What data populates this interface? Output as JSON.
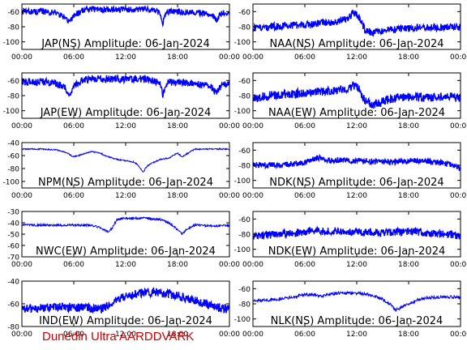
{
  "footer_text": "Dunedin Ultra AARDDVARK",
  "colors": {
    "trace": "#0000ff",
    "title": "#000000",
    "frame": "#000000",
    "footer": "#cc0000",
    "background": "#ffffff"
  },
  "chart_data": [
    {
      "type": "line",
      "title": "JAP(NS) Amplitude: 06-Jan-2024",
      "xlabel": "",
      "ylabel": "",
      "xticks": [
        "00:00",
        "06:00",
        "12:00",
        "18:00",
        "00:00"
      ],
      "xlim": [
        0,
        24
      ],
      "ylim": [
        -110,
        -50
      ],
      "yticks": [
        -60,
        -80,
        -100
      ],
      "grid": false,
      "series": [
        {
          "x": [
            0,
            1,
            2,
            3,
            4,
            5,
            5.5,
            6,
            7,
            8,
            9,
            10,
            11,
            12,
            13,
            14,
            15,
            16,
            16.3,
            16.6,
            17,
            18,
            19,
            20,
            21,
            22,
            22.5,
            23,
            24
          ],
          "y": [
            -60,
            -60,
            -60,
            -60,
            -62,
            -68,
            -74,
            -65,
            -58,
            -57,
            -57,
            -57,
            -57,
            -57,
            -57,
            -57,
            -58,
            -62,
            -75,
            -63,
            -60,
            -60,
            -61,
            -61,
            -62,
            -64,
            -72,
            -63,
            -60
          ],
          "spread": 4
        }
      ]
    },
    {
      "type": "line",
      "title": "NAA(NS) Amplitude: 06-Jan-2024",
      "xlabel": "",
      "ylabel": "",
      "xticks": [
        "00:00",
        "06:00",
        "12:00",
        "18:00",
        "00:00"
      ],
      "xlim": [
        0,
        24
      ],
      "ylim": [
        -110,
        -50
      ],
      "yticks": [
        -60,
        -80,
        -100
      ],
      "grid": false,
      "series": [
        {
          "x": [
            0,
            2,
            4,
            6,
            8,
            10,
            11,
            11.5,
            12,
            12.5,
            13,
            14,
            15,
            16,
            18,
            20,
            22,
            24
          ],
          "y": [
            -82,
            -80,
            -78,
            -77,
            -75,
            -72,
            -68,
            -62,
            -64,
            -72,
            -85,
            -88,
            -86,
            -84,
            -82,
            -81,
            -81,
            -80
          ],
          "spread": 5
        }
      ]
    },
    {
      "type": "line",
      "title": "JAP(EW) Amplitude: 06-Jan-2024",
      "xlabel": "",
      "ylabel": "",
      "xticks": [
        "00:00",
        "06:00",
        "12:00",
        "18:00",
        "00:00"
      ],
      "xlim": [
        0,
        24
      ],
      "ylim": [
        -110,
        -50
      ],
      "yticks": [
        -60,
        -80,
        -100
      ],
      "grid": false,
      "series": [
        {
          "x": [
            0,
            1,
            2,
            3,
            4,
            5,
            5.5,
            6,
            7,
            8,
            9,
            10,
            11,
            12,
            13,
            14,
            15,
            16,
            16.3,
            16.6,
            17,
            18,
            19,
            20,
            21,
            22,
            22.5,
            23,
            24
          ],
          "y": [
            -62,
            -62,
            -62,
            -62,
            -64,
            -70,
            -80,
            -68,
            -60,
            -58,
            -58,
            -58,
            -58,
            -58,
            -58,
            -58,
            -60,
            -64,
            -80,
            -66,
            -62,
            -62,
            -63,
            -64,
            -66,
            -70,
            -78,
            -68,
            -64
          ],
          "spread": 5
        }
      ]
    },
    {
      "type": "line",
      "title": "NAA(EW) Amplitude: 06-Jan-2024",
      "xlabel": "",
      "ylabel": "",
      "xticks": [
        "00:00",
        "06:00",
        "12:00",
        "18:00",
        "00:00"
      ],
      "xlim": [
        0,
        24
      ],
      "ylim": [
        -110,
        -50
      ],
      "yticks": [
        -60,
        -80,
        -100
      ],
      "grid": false,
      "series": [
        {
          "x": [
            0,
            2,
            4,
            6,
            8,
            10,
            11,
            11.5,
            12,
            12.5,
            13,
            14,
            15,
            16,
            18,
            20,
            22,
            24
          ],
          "y": [
            -84,
            -80,
            -78,
            -76,
            -74,
            -72,
            -70,
            -66,
            -68,
            -76,
            -88,
            -92,
            -88,
            -84,
            -82,
            -82,
            -82,
            -82
          ],
          "spread": 6
        }
      ]
    },
    {
      "type": "line",
      "title": "NPM(NS) Amplitude: 06-Jan-2024",
      "xlabel": "",
      "ylabel": "",
      "xticks": [
        "00:00",
        "06:00",
        "12:00",
        "18:00",
        "00:00"
      ],
      "xlim": [
        0,
        24
      ],
      "ylim": [
        -110,
        -40
      ],
      "yticks": [
        -40,
        -60,
        -80,
        -100
      ],
      "grid": false,
      "series": [
        {
          "x": [
            0,
            2,
            4,
            5,
            6,
            7,
            8,
            9,
            10,
            11,
            12,
            13,
            13.5,
            14,
            14.5,
            15,
            16,
            17,
            17.5,
            18,
            18.5,
            19,
            20,
            22,
            24
          ],
          "y": [
            -50,
            -50,
            -51,
            -55,
            -62,
            -58,
            -54,
            -56,
            -62,
            -66,
            -68,
            -70,
            -76,
            -86,
            -76,
            -72,
            -66,
            -64,
            -60,
            -56,
            -62,
            -58,
            -50,
            -50,
            -50
          ],
          "spread": 1
        }
      ]
    },
    {
      "type": "line",
      "title": "NDK(NS) Amplitude: 06-Jan-2024",
      "xlabel": "",
      "ylabel": "",
      "xticks": [
        "00:00",
        "06:00",
        "12:00",
        "18:00",
        "00:00"
      ],
      "xlim": [
        0,
        24
      ],
      "ylim": [
        -110,
        -50
      ],
      "yticks": [
        -60,
        -80,
        -100
      ],
      "grid": false,
      "series": [
        {
          "x": [
            0,
            2,
            4,
            6,
            7,
            7.5,
            8,
            9,
            10,
            12,
            14,
            16,
            18,
            20,
            22,
            23,
            24
          ],
          "y": [
            -80,
            -80,
            -79,
            -76,
            -72,
            -70,
            -72,
            -74,
            -73,
            -74,
            -75,
            -76,
            -74,
            -75,
            -77,
            -80,
            -84
          ],
          "spread": 4
        }
      ]
    },
    {
      "type": "line",
      "title": "NWC(EW) Amplitude: 06-Jan-2024",
      "xlabel": "",
      "ylabel": "",
      "xticks": [
        "00:00",
        "06:00",
        "12:00",
        "18:00",
        "00:00"
      ],
      "xlim": [
        0,
        24
      ],
      "ylim": [
        -70,
        -30
      ],
      "yticks": [
        -30,
        -40,
        -50,
        -60,
        -70
      ],
      "grid": false,
      "series": [
        {
          "x": [
            0,
            2,
            4,
            6,
            8,
            9,
            10,
            10.5,
            11,
            12,
            14,
            16,
            17,
            18,
            18.5,
            19,
            20,
            22,
            24
          ],
          "y": [
            -42,
            -42,
            -42,
            -42,
            -42,
            -44,
            -48,
            -44,
            -37,
            -36,
            -36,
            -37,
            -40,
            -46,
            -50,
            -46,
            -42,
            -43,
            -42
          ],
          "spread": 1
        }
      ]
    },
    {
      "type": "line",
      "title": "NDK(EW) Amplitude: 06-Jan-2024",
      "xlabel": "",
      "ylabel": "",
      "xticks": [
        "00:00",
        "06:00",
        "12:00",
        "18:00",
        "00:00"
      ],
      "xlim": [
        0,
        24
      ],
      "ylim": [
        -110,
        -50
      ],
      "yticks": [
        -60,
        -80,
        -100
      ],
      "grid": false,
      "series": [
        {
          "x": [
            0,
            2,
            4,
            6,
            7,
            8,
            10,
            12,
            14,
            16,
            18,
            20,
            22,
            24
          ],
          "y": [
            -82,
            -81,
            -79,
            -77,
            -74,
            -76,
            -76,
            -77,
            -78,
            -78,
            -76,
            -78,
            -80,
            -82
          ],
          "spread": 5
        }
      ]
    },
    {
      "type": "line",
      "title": "IND(EW) Amplitude: 06-Jan-2024",
      "xlabel": "",
      "ylabel": "",
      "xticks": [
        "00:00",
        "06:00",
        "12:00",
        "18:00",
        "00:00"
      ],
      "xlim": [
        0,
        24
      ],
      "ylim": [
        -80,
        -40
      ],
      "yticks": [
        -40,
        -60,
        -80
      ],
      "grid": false,
      "series": [
        {
          "x": [
            0,
            2,
            4,
            6,
            8,
            9,
            10,
            11,
            12,
            13,
            14,
            16,
            18,
            20,
            22,
            24
          ],
          "y": [
            -65,
            -64,
            -63,
            -63,
            -64,
            -65,
            -62,
            -56,
            -53,
            -52,
            -50,
            -50,
            -53,
            -57,
            -62,
            -65
          ],
          "spread": 4
        }
      ]
    },
    {
      "type": "line",
      "title": "NLK(NS) Amplitude: 06-Jan-2024",
      "xlabel": "",
      "ylabel": "",
      "xticks": [
        "00:00",
        "06:00",
        "12:00",
        "18:00",
        "00:00"
      ],
      "xlim": [
        0,
        24
      ],
      "ylim": [
        -110,
        -50
      ],
      "yticks": [
        -60,
        -80,
        -100
      ],
      "grid": false,
      "series": [
        {
          "x": [
            0,
            2,
            4,
            5,
            6,
            7,
            8,
            9,
            10,
            12,
            13,
            14,
            15,
            16,
            16.5,
            17,
            18,
            19,
            20,
            22,
            24
          ],
          "y": [
            -76,
            -75,
            -72,
            -70,
            -68,
            -68,
            -70,
            -67,
            -66,
            -66,
            -67,
            -70,
            -74,
            -82,
            -88,
            -86,
            -80,
            -75,
            -72,
            -71,
            -71
          ],
          "spread": 2
        }
      ]
    }
  ]
}
